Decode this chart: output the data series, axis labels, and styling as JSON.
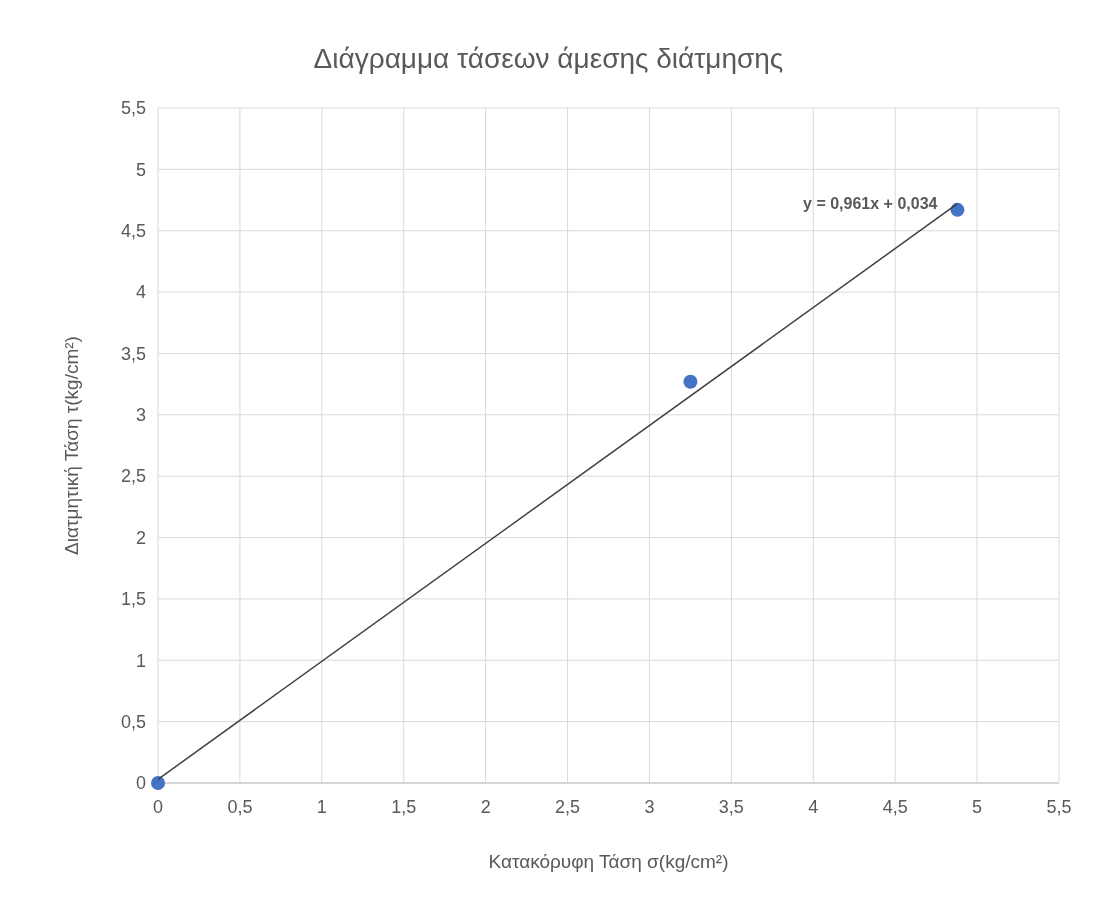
{
  "chart_data": {
    "type": "scatter",
    "title": "Διάγραμμα τάσεων άμεσης διάτμησης",
    "xlabel": "Κατακόρυφη Τάση σ(kg/cm²)",
    "ylabel": "Διατμητική Τάση τ(kg/cm²)",
    "series": [
      {
        "color": "#4472c4",
        "x": [
          0,
          3.25,
          4.88
        ],
        "values": [
          0,
          3.27,
          4.67
        ],
        "marker": "circle"
      },
      {
        "type": "line",
        "color": "#404040",
        "x": [
          0,
          4.88
        ],
        "values": [
          0.03,
          4.72
        ],
        "marker": "none",
        "line_style": "solid"
      }
    ],
    "annotations": [
      {
        "text": "y = 0,961x + 0,034",
        "x": 4.88,
        "y": 4.724
      }
    ],
    "xlim": [
      0,
      5.5
    ],
    "ylim": [
      0,
      5.5
    ],
    "xticks": [
      0,
      {
        "value": 0.5,
        "label": "0,5"
      },
      1,
      {
        "value": 1.5,
        "label": "1,5"
      },
      2,
      {
        "value": 2.5,
        "label": "2,5"
      },
      3,
      {
        "value": 3.5,
        "label": "3,5"
      },
      4,
      {
        "value": 4.5,
        "label": "4,5"
      },
      5,
      {
        "value": 5.5,
        "label": "5,5"
      }
    ],
    "yticks": [
      0,
      {
        "value": 0.5,
        "label": "0,5"
      },
      1,
      {
        "value": 1.5,
        "label": "1,5"
      },
      2,
      {
        "value": 2.5,
        "label": "2,5"
      },
      3,
      {
        "value": 3.5,
        "label": "3,5"
      },
      4,
      {
        "value": 4.5,
        "label": "4,5"
      },
      5,
      {
        "value": 5.5,
        "label": "5,5"
      }
    ],
    "grid": true
  }
}
